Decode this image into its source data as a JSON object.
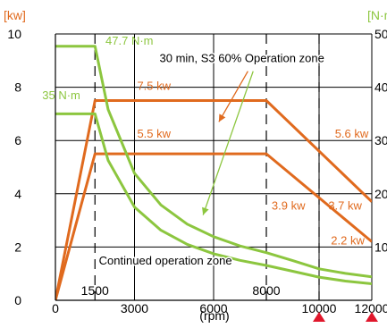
{
  "chart_data": {
    "type": "line",
    "title": "",
    "xlabel": "(rpm)",
    "left_axis_label": "[kw]",
    "right_axis_label": "[N·m]",
    "xlim": [
      0,
      12000
    ],
    "ylim": [
      0,
      10
    ],
    "y2lim": [
      0,
      50
    ],
    "grid": true,
    "x_ticks": [
      {
        "value": 0,
        "label": "0"
      },
      {
        "value": 3000,
        "label": "3000"
      },
      {
        "value": 6000,
        "label": "6000"
      },
      {
        "value": 10000,
        "label": "10000"
      },
      {
        "value": 12000,
        "label": "12000"
      }
    ],
    "x_extra_ticks": [
      {
        "value": 1500,
        "label": "1500"
      },
      {
        "value": 8000,
        "label": "8000"
      }
    ],
    "y_ticks": [
      {
        "value": 0,
        "label": "0"
      },
      {
        "value": 2,
        "label": "2"
      },
      {
        "value": 4,
        "label": "4"
      },
      {
        "value": 6,
        "label": "6"
      },
      {
        "value": 8,
        "label": "8"
      },
      {
        "value": 10,
        "label": "10"
      }
    ],
    "y2_ticks": [
      {
        "value": 10,
        "label": "10"
      },
      {
        "value": 20,
        "label": "20"
      },
      {
        "value": 30,
        "label": "30"
      },
      {
        "value": 40,
        "label": "40"
      },
      {
        "value": 50,
        "label": "50"
      }
    ],
    "dashed_verticals": [
      1500,
      8000,
      10000
    ],
    "markers_x": [
      10000,
      12000
    ],
    "series": [
      {
        "kind": "power",
        "color": "#e06a1e",
        "x": [
          0,
          1500,
          8000,
          12000
        ],
        "y": [
          0,
          7.5,
          7.5,
          3.7
        ]
      },
      {
        "kind": "power",
        "color": "#e06a1e",
        "x": [
          0,
          1500,
          8000,
          12000
        ],
        "y": [
          0,
          5.5,
          5.5,
          2.2
        ]
      },
      {
        "kind": "torque",
        "color": "#8cc63f",
        "x": [
          0,
          1500,
          2000,
          3000,
          4000,
          5000,
          6000,
          7000,
          8000,
          9000,
          10000,
          11000,
          12000
        ],
        "y": [
          9.54,
          9.54,
          7.16,
          4.77,
          3.58,
          2.86,
          2.39,
          2.04,
          1.79,
          1.49,
          1.18,
          1.01,
          0.88
        ]
      },
      {
        "kind": "torque",
        "color": "#8cc63f",
        "x": [
          0,
          1500,
          2000,
          3000,
          4000,
          5000,
          6000,
          7000,
          8000,
          9000,
          10000,
          11000,
          12000
        ],
        "y": [
          7.0,
          7.0,
          5.25,
          3.5,
          2.63,
          2.1,
          1.75,
          1.5,
          1.31,
          1.09,
          0.87,
          0.72,
          0.62
        ]
      }
    ],
    "value_labels": [
      {
        "text": "47.7 N·m",
        "color": "#8cc63f",
        "x": 1900,
        "y": 9.6
      },
      {
        "text": "35 N·m",
        "color": "#8cc63f",
        "x": -500,
        "y": 7.55
      },
      {
        "text": "7.5 kw",
        "color": "#e06a1e",
        "x": 3100,
        "y": 7.9
      },
      {
        "text": "5.5 kw",
        "color": "#e06a1e",
        "x": 3100,
        "y": 6.1
      },
      {
        "text": "5.6 kw",
        "color": "#e06a1e",
        "x": 10600,
        "y": 6.1
      },
      {
        "text": "3.9 kw",
        "color": "#e06a1e",
        "x": 8200,
        "y": 3.4
      },
      {
        "text": "3.7 kw",
        "color": "#e06a1e",
        "x": 10350,
        "y": 3.4
      },
      {
        "text": "2.2 kw",
        "color": "#e06a1e",
        "x": 10450,
        "y": 2.1
      }
    ],
    "zone_labels": [
      {
        "text": "30 min, S3 60% Operation zone",
        "x": 3950,
        "y": 8.95
      },
      {
        "text": "Continued operation zone",
        "x": 1650,
        "y": 1.35
      }
    ],
    "zone_pointers": [
      {
        "color": "#e06a1e",
        "from": [
          7300,
          8.6
        ],
        "to": [
          6200,
          6.7
        ]
      },
      {
        "color": "#8cc63f",
        "from": [
          7500,
          8.6
        ],
        "to": [
          5600,
          3.2
        ]
      }
    ]
  }
}
